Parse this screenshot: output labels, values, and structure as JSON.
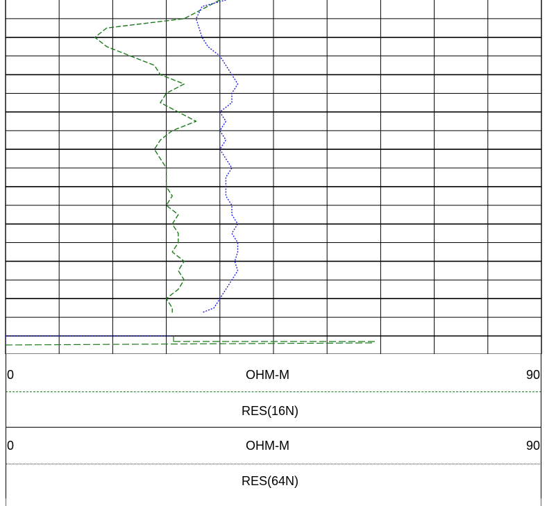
{
  "chart_data": {
    "type": "line",
    "title": "",
    "xlabel": "OHM-M",
    "xlim": [
      0,
      90
    ],
    "grid": true,
    "series": [
      {
        "name": "RES(16N)",
        "color": "#1a7a1a",
        "scale_left": "0",
        "scale_right": "90",
        "unit": "OHM-M",
        "points": [
          [
            36,
            0
          ],
          [
            30,
            2
          ],
          [
            17,
            3
          ],
          [
            15,
            4
          ],
          [
            17,
            5
          ],
          [
            21,
            6
          ],
          [
            25,
            7
          ],
          [
            26,
            8
          ],
          [
            30,
            9
          ],
          [
            27,
            10
          ],
          [
            26,
            11
          ],
          [
            29,
            12
          ],
          [
            32,
            13
          ],
          [
            28,
            14
          ],
          [
            26,
            15
          ],
          [
            25,
            16
          ],
          [
            26,
            17
          ],
          [
            27,
            18
          ],
          [
            27,
            19
          ],
          [
            27,
            20
          ],
          [
            28,
            21
          ],
          [
            27,
            22
          ],
          [
            29,
            23
          ],
          [
            28,
            24
          ],
          [
            29,
            25
          ],
          [
            29,
            26
          ],
          [
            28,
            27
          ],
          [
            30,
            28
          ],
          [
            29,
            29
          ],
          [
            30,
            30
          ],
          [
            29,
            31
          ],
          [
            27,
            32
          ],
          [
            28,
            33
          ],
          [
            28,
            33.5
          ]
        ]
      },
      {
        "name": "RES(64N)",
        "color": "#1a1add",
        "scale_left": "0",
        "scale_right": "90",
        "unit": "OHM-M",
        "points": [
          [
            37,
            0
          ],
          [
            33,
            0.7
          ],
          [
            32,
            2
          ],
          [
            33,
            4
          ],
          [
            34,
            5
          ],
          [
            36,
            6
          ],
          [
            37,
            7
          ],
          [
            38,
            8
          ],
          [
            39,
            9
          ],
          [
            38,
            10
          ],
          [
            38,
            11
          ],
          [
            36,
            12
          ],
          [
            37,
            13
          ],
          [
            36,
            14
          ],
          [
            37,
            15
          ],
          [
            36,
            16
          ],
          [
            37,
            17
          ],
          [
            38,
            18
          ],
          [
            37,
            19
          ],
          [
            37,
            20
          ],
          [
            37,
            21
          ],
          [
            38,
            22
          ],
          [
            38,
            23
          ],
          [
            39,
            24
          ],
          [
            38,
            25
          ],
          [
            39,
            26
          ],
          [
            39,
            27
          ],
          [
            38.5,
            28
          ],
          [
            39,
            29
          ],
          [
            38,
            30
          ],
          [
            37,
            31
          ],
          [
            36,
            32
          ],
          [
            35,
            33
          ],
          [
            33,
            33.5
          ]
        ]
      }
    ],
    "depth_range": [
      0,
      36
    ]
  },
  "headers": [
    {
      "left_value": "0",
      "unit": "OHM-M",
      "right_value": "90",
      "curve_name": "RES(16N)",
      "line_color": "#1a7a1a"
    },
    {
      "left_value": "0",
      "unit": "OHM-M",
      "right_value": "90",
      "curve_name": "RES(64N)",
      "line_color": "#1a1add"
    }
  ]
}
